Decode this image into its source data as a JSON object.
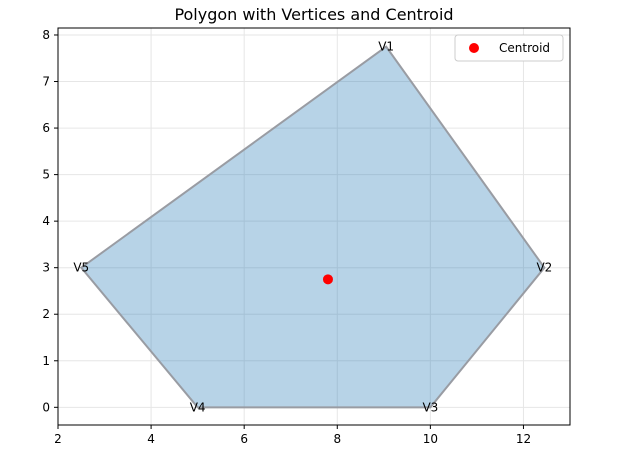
{
  "chart_data": {
    "type": "scatter",
    "title": "Polygon with Vertices and Centroid",
    "xlabel": "",
    "ylabel": "",
    "xlim": [
      2,
      13.0
    ],
    "ylim": [
      -0.38,
      8.15
    ],
    "xticks": [
      2,
      4,
      6,
      8,
      10,
      12
    ],
    "yticks": [
      0,
      1,
      2,
      3,
      4,
      5,
      6,
      7,
      8
    ],
    "grid": true,
    "legend_position": "top-right",
    "polygon": {
      "vertices": [
        {
          "label": "V1",
          "x": 9.05,
          "y": 7.75
        },
        {
          "label": "V2",
          "x": 12.45,
          "y": 3.0
        },
        {
          "label": "V3",
          "x": 10.0,
          "y": 0.0
        },
        {
          "label": "V4",
          "x": 5.0,
          "y": 0.0
        },
        {
          "label": "V5",
          "x": 2.5,
          "y": 3.0
        }
      ],
      "fill_color": "#1f77b4",
      "fill_opacity": 0.32,
      "edge_color": "#999ca3"
    },
    "centroid": {
      "name": "Centroid",
      "x": 7.8,
      "y": 2.75,
      "color": "#ff0000"
    }
  }
}
